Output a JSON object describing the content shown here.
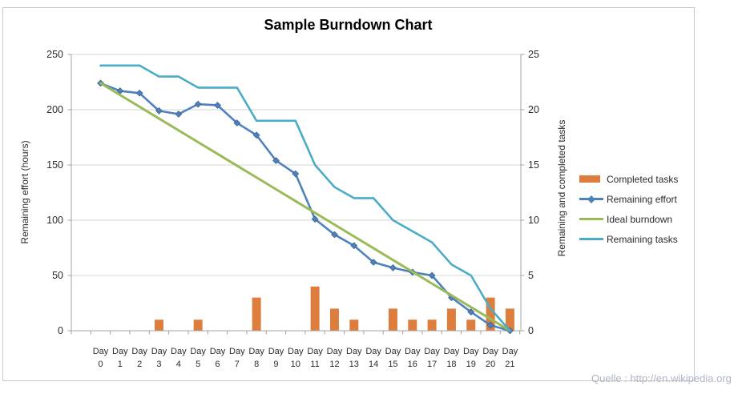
{
  "chart": {
    "title": "Sample Burndown Chart",
    "source_note": "Quelle : http://en.wikipedia.org",
    "left_axis": {
      "title": "Remaining effort (hours)",
      "ticks": [
        250,
        200,
        150,
        100,
        50,
        0
      ]
    },
    "right_axis": {
      "title": "Remaining and  completed tasks",
      "ticks": [
        25,
        20,
        15,
        10,
        5,
        0
      ]
    },
    "x_axis": {
      "label_word": "Day"
    }
  },
  "chart_data": {
    "type": "combo-bar-line",
    "categories": [
      "Day 0",
      "Day 1",
      "Day 2",
      "Day 3",
      "Day 4",
      "Day 5",
      "Day 6",
      "Day 7",
      "Day 8",
      "Day 9",
      "Day 10",
      "Day 11",
      "Day 12",
      "Day 13",
      "Day 14",
      "Day 15",
      "Day 16",
      "Day 17",
      "Day 18",
      "Day 19",
      "Day 20",
      "Day 21"
    ],
    "title": "Sample Burndown Chart",
    "left_ylabel": "Remaining effort (hours)",
    "right_ylabel": "Remaining and  completed tasks",
    "left_ylim": [
      0,
      250
    ],
    "right_ylim": [
      0,
      25
    ],
    "grid": true,
    "legend_position": "right",
    "series": [
      {
        "name": "Completed tasks",
        "type": "bar",
        "axis": "right",
        "color": "#dd7e3e",
        "values": [
          0,
          0,
          0,
          1,
          0,
          1,
          0,
          0,
          3,
          0,
          0,
          4,
          2,
          1,
          0,
          2,
          1,
          1,
          2,
          1,
          3,
          2
        ]
      },
      {
        "name": "Remaining effort",
        "type": "line",
        "axis": "left",
        "color": "#4f81bd",
        "marker": "diamond",
        "marker_edge": "#3a618e",
        "values": [
          224,
          217,
          215,
          199,
          196,
          205,
          204,
          188,
          177,
          154,
          142,
          101,
          87,
          77,
          62,
          57,
          53,
          50,
          30,
          17,
          5,
          0
        ]
      },
      {
        "name": "Ideal burndown",
        "type": "line",
        "axis": "left",
        "color": "#9bbb59",
        "values": [
          224,
          213.33,
          202.67,
          192,
          181.33,
          170.67,
          160,
          149.33,
          138.67,
          128,
          117.33,
          106.67,
          96,
          85.33,
          74.67,
          64,
          53.33,
          42.67,
          32,
          21.33,
          10.67,
          0
        ]
      },
      {
        "name": "Remaining tasks",
        "type": "line",
        "axis": "right",
        "color": "#4bacc6",
        "values": [
          24,
          24,
          24,
          23,
          23,
          22,
          22,
          22,
          19,
          19,
          19,
          15,
          13,
          12,
          12,
          10,
          9,
          8,
          6,
          5,
          2,
          0
        ]
      }
    ],
    "colors": {
      "gridline": "#d5d5d5",
      "axis_line": "#a3a3a3",
      "tick_text": "#2b2b2b",
      "frame_border": "#c9c9c9",
      "watermark": "#b0b4c6"
    }
  }
}
